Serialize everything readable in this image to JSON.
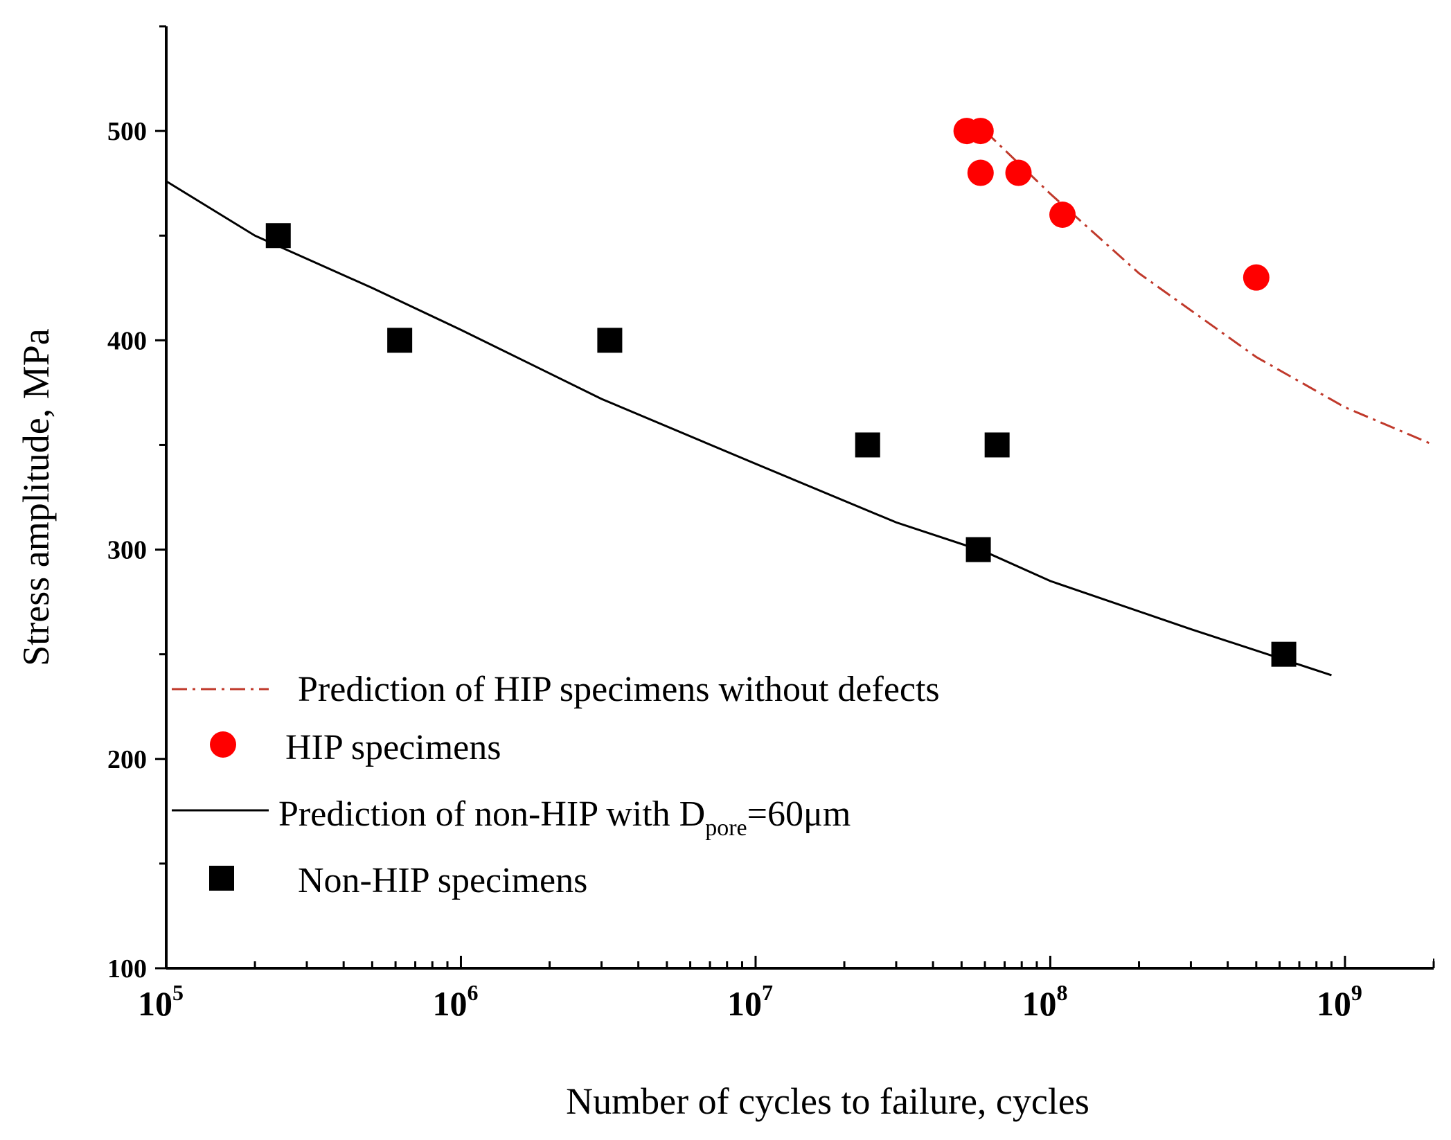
{
  "chart_data": {
    "type": "scatter",
    "title": "",
    "xlabel": "Number of cycles to failure, cycles",
    "ylabel": "Stress amplitude, MPa",
    "xscale": "log",
    "xlim": [
      100000,
      2000000000
    ],
    "ylim": [
      100,
      550
    ],
    "x_ticks": [
      {
        "value": 100000,
        "base": "10",
        "exp": "5"
      },
      {
        "value": 1000000,
        "base": "10",
        "exp": "6"
      },
      {
        "value": 10000000,
        "base": "10",
        "exp": "7"
      },
      {
        "value": 100000000,
        "base": "10",
        "exp": "8"
      },
      {
        "value": 1000000000,
        "base": "10",
        "exp": "9"
      }
    ],
    "y_ticks": [
      100,
      200,
      300,
      400,
      500
    ],
    "grid": false,
    "legend_position": "bottom-left",
    "series": [
      {
        "name": "Prediction of HIP specimens without defects",
        "kind": "line",
        "style": "dash-dot",
        "color": "#c0392b",
        "x": [
          60000000,
          100000000,
          200000000,
          500000000,
          1000000000,
          2000000000
        ],
        "y": [
          500,
          470,
          432,
          392,
          368,
          350
        ]
      },
      {
        "name": "HIP specimens",
        "kind": "scatter",
        "marker": "circle",
        "color": "#ff0000",
        "x": [
          52000000,
          58000000,
          58000000,
          78000000,
          110000000,
          500000000
        ],
        "y": [
          500,
          500,
          480,
          480,
          460,
          430
        ]
      },
      {
        "name": "Prediction of non-HIP with D",
        "name_sub": "pore",
        "name_tail": "=60μm",
        "kind": "line",
        "style": "solid",
        "color": "#000000",
        "x": [
          100000,
          200000,
          500000,
          1000000,
          3000000,
          10000000,
          30000000,
          60000000,
          100000000,
          300000000,
          900000000
        ],
        "y": [
          476,
          450,
          425,
          405,
          372,
          341,
          313,
          299,
          285,
          262,
          240
        ]
      },
      {
        "name": "Non-HIP specimens",
        "kind": "scatter",
        "marker": "square",
        "color": "#000000",
        "x": [
          240000,
          620000,
          3200000,
          24000000,
          66000000,
          57000000,
          620000000
        ],
        "y": [
          450,
          400,
          400,
          350,
          350,
          300,
          250
        ]
      }
    ]
  }
}
